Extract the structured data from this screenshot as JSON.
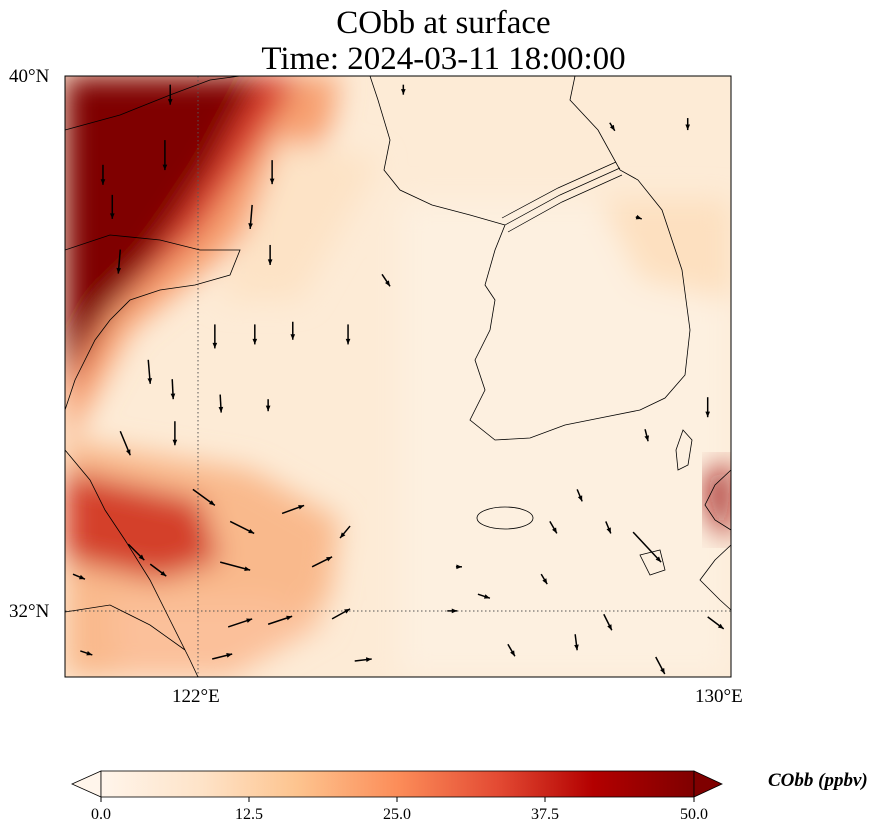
{
  "title": {
    "line1": "CObb at surface",
    "line2": "Time: 2024-03-11 18:00:00"
  },
  "map": {
    "lon_range": [
      120,
      130
    ],
    "lat_range": [
      31,
      40
    ],
    "lat_labels": [
      "40°N",
      "32°N"
    ],
    "lon_labels": [
      "122°E",
      "130°E"
    ],
    "gridlines": {
      "lon": 122,
      "lat": 32
    }
  },
  "colorbar": {
    "label": "CObb (ppbv)",
    "ticks": [
      "0.0",
      "12.5",
      "25.0",
      "37.5",
      "50.0"
    ],
    "range": [
      0,
      50
    ],
    "extend": "both",
    "colors": [
      "#fff5eb",
      "#fdd9b4",
      "#fda762",
      "#f3701b",
      "#c54102",
      "#b50b0b",
      "#7f0000"
    ]
  },
  "wind_vectors": [
    [
      121.58,
      39.87,
      0,
      -5
    ],
    [
      120.57,
      38.67,
      0,
      -5
    ],
    [
      120.71,
      38.22,
      0,
      -6
    ],
    [
      121.5,
      39.04,
      0,
      -7.5
    ],
    [
      122.81,
      38.07,
      -0.5,
      -6
    ],
    [
      123.11,
      38.74,
      0,
      -6
    ],
    [
      123.08,
      37.47,
      0,
      -5
    ],
    [
      120.83,
      37.4,
      -0.5,
      -6
    ],
    [
      122.25,
      36.28,
      0,
      -6
    ],
    [
      122.85,
      36.28,
      0,
      -5
    ],
    [
      123.42,
      36.32,
      0,
      -4.5
    ],
    [
      124.25,
      36.28,
      0,
      -5
    ],
    [
      121.25,
      35.75,
      0.5,
      -6
    ],
    [
      121.61,
      35.46,
      0.25,
      -5
    ],
    [
      122.33,
      35.23,
      0.25,
      -4.5
    ],
    [
      123.05,
      35.16,
      0,
      -3
    ],
    [
      121.65,
      34.83,
      0,
      -6
    ],
    [
      120.83,
      34.68,
      2.5,
      -6
    ],
    [
      121.92,
      33.81,
      5.5,
      -4
    ],
    [
      122.48,
      33.33,
      6,
      -3
    ],
    [
      123.26,
      33.45,
      5.5,
      2
    ],
    [
      124.28,
      33.26,
      -2.5,
      -3
    ],
    [
      120.95,
      32.99,
      4,
      -4
    ],
    [
      121.28,
      32.69,
      4,
      -3
    ],
    [
      122.33,
      32.72,
      7.5,
      -2
    ],
    [
      123.71,
      32.65,
      5,
      2.5
    ],
    [
      124.76,
      37.03,
      2,
      -3
    ],
    [
      128.18,
      39.3,
      1.25,
      -2
    ],
    [
      129.35,
      39.37,
      0,
      -3
    ],
    [
      129.65,
      35.19,
      0,
      -5
    ],
    [
      128.71,
      34.71,
      0.75,
      -3
    ],
    [
      128.53,
      33.17,
      7,
      -7.5
    ],
    [
      127.69,
      33.81,
      1.25,
      -3
    ],
    [
      127.28,
      33.33,
      1.75,
      -3
    ],
    [
      128.12,
      33.33,
      1.25,
      -3
    ],
    [
      125.87,
      32.65,
      1.5,
      0
    ],
    [
      127.15,
      32.54,
      1.5,
      -2.5
    ],
    [
      126.2,
      32.24,
      3,
      -1
    ],
    [
      125.74,
      31.99,
      2.5,
      0
    ],
    [
      127.66,
      31.64,
      0.5,
      -4
    ],
    [
      128.09,
      31.94,
      2,
      -4
    ],
    [
      126.65,
      31.49,
      1.75,
      -3
    ],
    [
      128.87,
      31.3,
      2.25,
      -4.25
    ],
    [
      129.65,
      31.9,
      4,
      -3
    ],
    [
      122.45,
      31.75,
      6,
      2
    ],
    [
      123.05,
      31.79,
      6,
      2
    ],
    [
      124.01,
      31.87,
      4.5,
      2.5
    ],
    [
      124.35,
      31.24,
      4.25,
      0.5
    ],
    [
      122.21,
      31.27,
      5,
      1.25
    ],
    [
      120.23,
      31.39,
      3,
      -1
    ],
    [
      120.12,
      32.54,
      3,
      -1.25
    ],
    [
      125.08,
      39.87,
      0,
      -2.5
    ],
    [
      128.57,
      37.89,
      1.5,
      -0.5
    ]
  ]
}
